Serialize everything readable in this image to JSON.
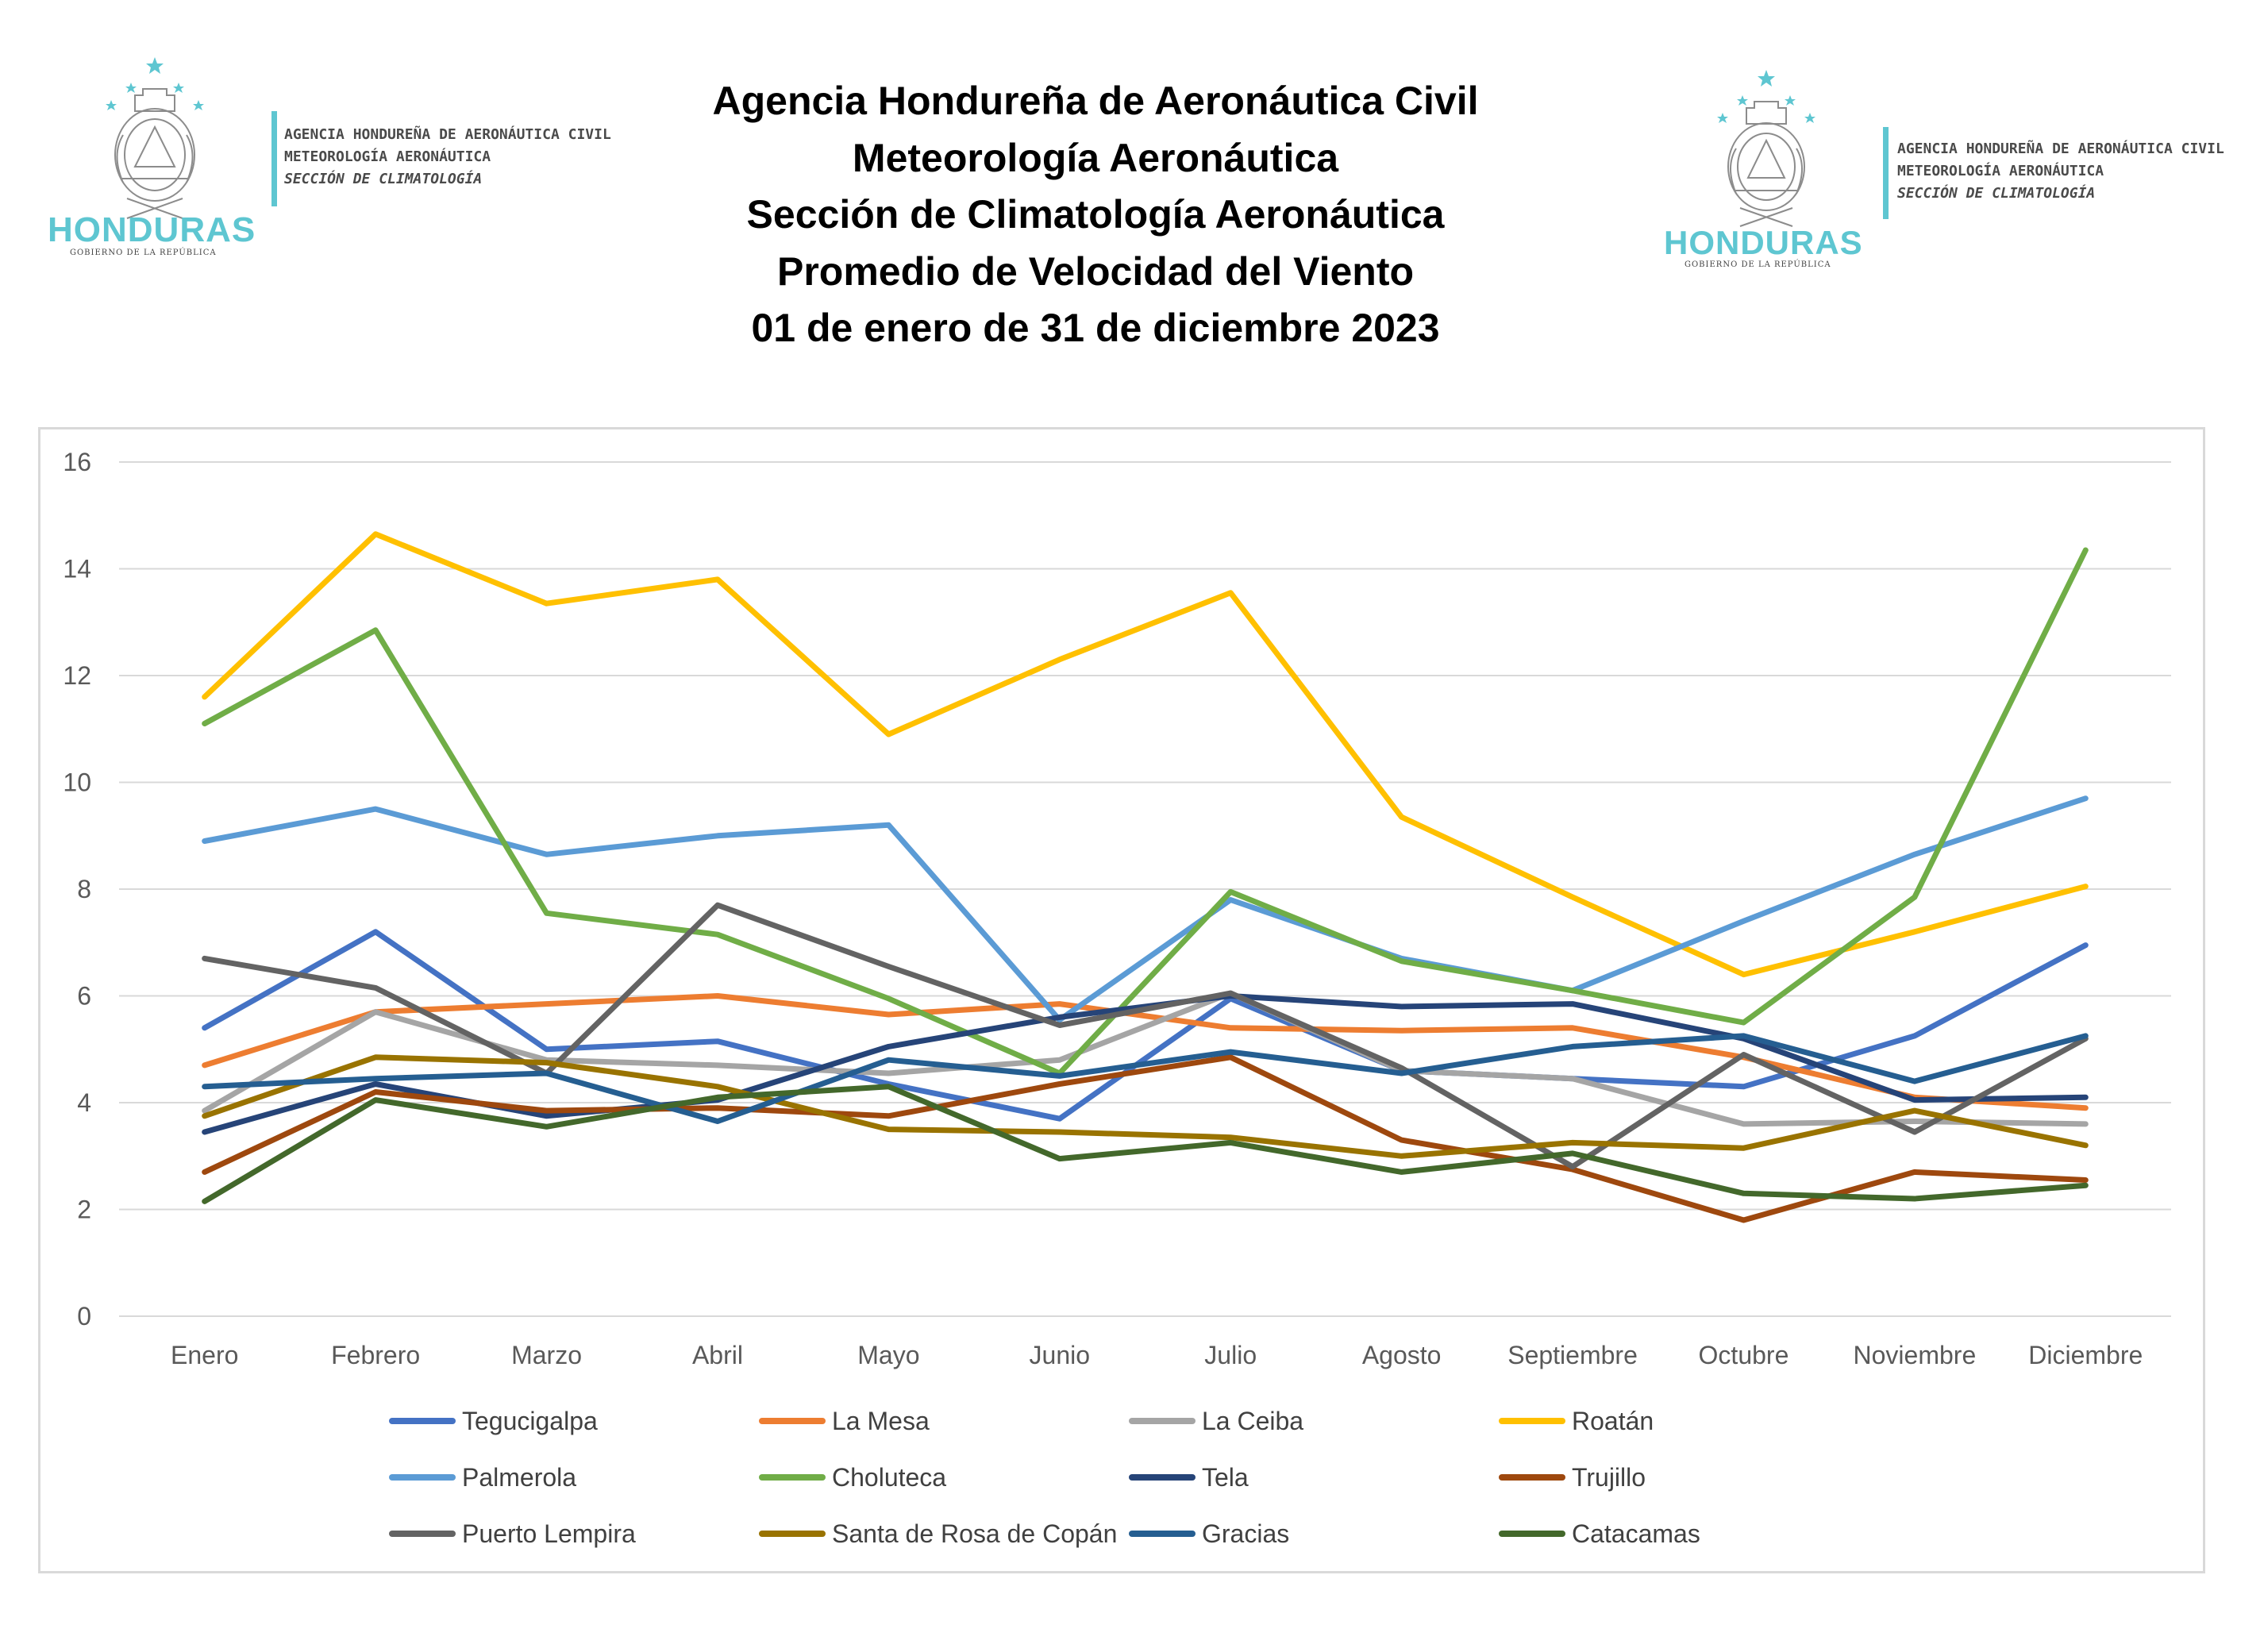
{
  "header": {
    "title_lines": [
      "Agencia Hondureña de Aeronáutica Civil",
      "Meteorología Aeronáutica",
      "Sección de Climatología Aeronáutica",
      "Promedio de Velocidad del Viento",
      "01 de enero de 31 de diciembre 2023"
    ]
  },
  "logos": {
    "wordmark": "HONDURAS",
    "subtitle": "GOBIERNO DE LA REPÚBLICA",
    "agency_line1": "AGENCIA HONDUREÑA DE AERONÁUTICA CIVIL",
    "agency_line2": "METEOROLOGÍA AERONÁUTICA",
    "agency_line3": "SECCIÓN DE CLIMATOLOGÍA",
    "brand_color": "#5ec6d1"
  },
  "chart_data": {
    "type": "line",
    "title": "",
    "xlabel": "",
    "ylabel": "",
    "ylim": [
      0,
      16
    ],
    "yticks": [
      0,
      2,
      4,
      6,
      8,
      10,
      12,
      14,
      16
    ],
    "grid": "horizontal",
    "legend_position": "bottom",
    "categories": [
      "Enero",
      "Febrero",
      "Marzo",
      "Abril",
      "Mayo",
      "Junio",
      "Julio",
      "Agosto",
      "Septiembre",
      "Octubre",
      "Noviembre",
      "Diciembre"
    ],
    "series": [
      {
        "name": "Tegucigalpa",
        "color": "#4472c4",
        "values": [
          5.4,
          7.2,
          5.0,
          5.15,
          4.35,
          3.7,
          5.95,
          4.6,
          4.45,
          4.3,
          5.25,
          6.95
        ]
      },
      {
        "name": "La Mesa",
        "color": "#ed7d31",
        "values": [
          4.7,
          5.7,
          5.85,
          6.0,
          5.65,
          5.85,
          5.4,
          5.35,
          5.4,
          4.85,
          4.1,
          3.9
        ]
      },
      {
        "name": "La Ceiba",
        "color": "#a5a5a5",
        "values": [
          3.85,
          5.7,
          4.8,
          4.7,
          4.55,
          4.8,
          6.05,
          4.6,
          4.45,
          3.6,
          3.65,
          3.6
        ]
      },
      {
        "name": "Roatán",
        "color": "#ffc000",
        "values": [
          11.6,
          14.65,
          13.35,
          13.8,
          10.9,
          12.3,
          13.55,
          9.35,
          7.85,
          6.4,
          7.2,
          8.05
        ]
      },
      {
        "name": "Palmerola",
        "color": "#5b9bd5",
        "values": [
          8.9,
          9.5,
          8.65,
          9.0,
          9.2,
          5.55,
          7.8,
          6.7,
          6.1,
          7.4,
          8.65,
          9.7
        ]
      },
      {
        "name": "Choluteca",
        "color": "#70ad47",
        "values": [
          11.1,
          12.85,
          7.55,
          7.15,
          5.95,
          4.55,
          7.95,
          6.65,
          6.1,
          5.5,
          7.85,
          14.35
        ]
      },
      {
        "name": "Tela",
        "color": "#264478",
        "values": [
          3.45,
          4.35,
          3.75,
          4.05,
          5.05,
          5.6,
          6.0,
          5.8,
          5.85,
          5.2,
          4.05,
          4.1
        ]
      },
      {
        "name": "Trujillo",
        "color": "#9e480e",
        "values": [
          2.7,
          4.2,
          3.85,
          3.9,
          3.75,
          4.35,
          4.85,
          3.3,
          2.75,
          1.8,
          2.7,
          2.55
        ]
      },
      {
        "name": "Puerto Lempira",
        "color": "#636363",
        "values": [
          6.7,
          6.15,
          4.55,
          7.7,
          6.55,
          5.45,
          6.05,
          4.65,
          2.8,
          4.9,
          3.45,
          5.2
        ]
      },
      {
        "name": "Santa de Rosa de Copán",
        "color": "#997300",
        "values": [
          3.75,
          4.85,
          4.75,
          4.3,
          3.5,
          3.45,
          3.35,
          3.0,
          3.25,
          3.15,
          3.85,
          3.2
        ]
      },
      {
        "name": "Gracias",
        "color": "#255e91",
        "values": [
          4.3,
          4.45,
          4.55,
          3.65,
          4.8,
          4.5,
          4.95,
          4.55,
          5.05,
          5.25,
          4.4,
          5.25
        ]
      },
      {
        "name": "Catacamas",
        "color": "#43682b",
        "values": [
          2.15,
          4.05,
          3.55,
          4.1,
          4.3,
          2.95,
          3.25,
          2.7,
          3.05,
          2.3,
          2.2,
          2.45
        ]
      }
    ]
  }
}
